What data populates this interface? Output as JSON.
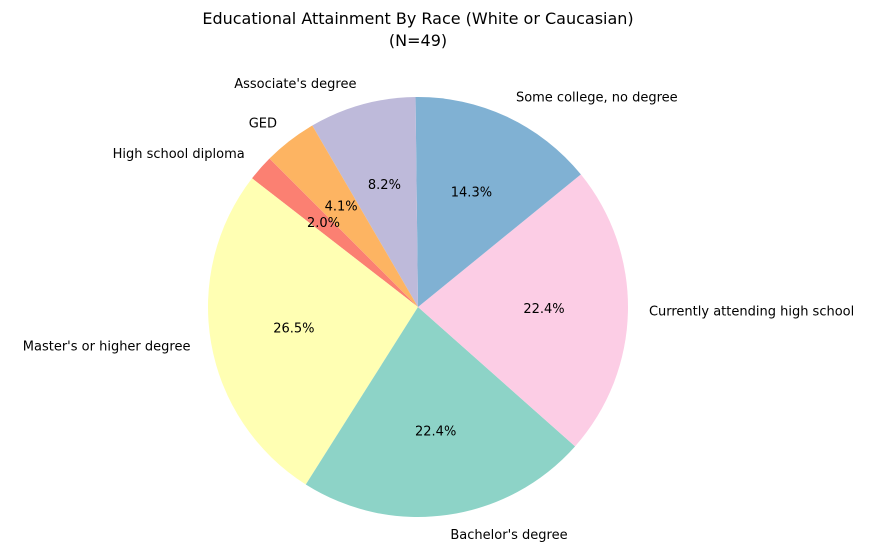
{
  "chart_data": {
    "type": "pie",
    "title": "Educational Attainment By Race (White or Caucasian)",
    "subtitle": "(N=49)",
    "categories": [
      "High school diploma",
      "Master's or higher degree",
      "Bachelor's degree",
      "Currently attending high school",
      "Some college, no degree",
      "Associate's degree",
      "GED"
    ],
    "values": [
      2.0,
      26.5,
      22.4,
      22.4,
      14.3,
      8.2,
      4.1
    ],
    "value_labels": [
      "2.0%",
      "26.5%",
      "22.4%",
      "22.4%",
      "14.3%",
      "8.2%",
      "4.1%"
    ],
    "colors": [
      "#fb8072",
      "#ffffb3",
      "#8dd3c7",
      "#fccde5",
      "#80b1d3",
      "#bebada",
      "#fdb462"
    ],
    "legend": "none"
  }
}
